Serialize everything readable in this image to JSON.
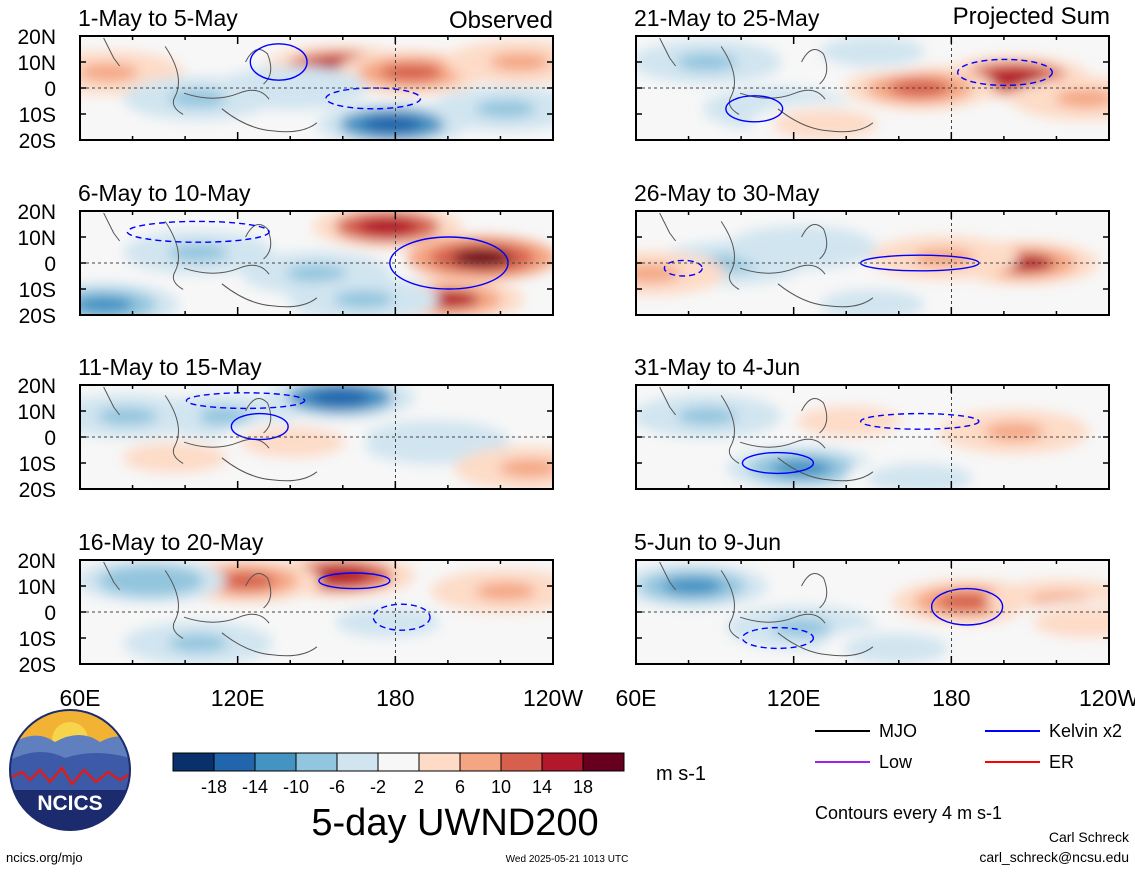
{
  "chart_data": {
    "type": "heatmap",
    "title": "5-day UWND200",
    "units": "m s-1",
    "contour_note": "Contours every 4 m s-1",
    "left_column_label": "Observed",
    "right_column_label": "Projected Sum",
    "y_ticks": [
      "20N",
      "10N",
      "0",
      "10S",
      "20S"
    ],
    "x_ticks": [
      "60E",
      "120E",
      "180",
      "120W"
    ],
    "colorbar": {
      "ticks": [
        "-18",
        "-14",
        "-10",
        "-6",
        "-2",
        "2",
        "6",
        "10",
        "14",
        "18"
      ],
      "colors": [
        "#08306b",
        "#2166ac",
        "#4393c3",
        "#92c5de",
        "#d1e5f0",
        "#f7f7f7",
        "#fddbc7",
        "#f4a582",
        "#d6604d",
        "#b2182b",
        "#67001f"
      ]
    },
    "legend": [
      {
        "label": "MJO",
        "color": "#000000"
      },
      {
        "label": "Kelvin x2",
        "color": "#0000ff"
      },
      {
        "label": "Low",
        "color": "#a020f0"
      },
      {
        "label": "ER",
        "color": "#ff0000"
      }
    ],
    "panels": [
      {
        "title": "1-May to 5-May"
      },
      {
        "title": "21-May to 25-May"
      },
      {
        "title": "6-May to 10-May"
      },
      {
        "title": "26-May to 30-May"
      },
      {
        "title": "11-May to 15-May"
      },
      {
        "title": "31-May to 4-Jun"
      },
      {
        "title": "16-May to 20-May"
      },
      {
        "title": "5-Jun to 9-Jun"
      }
    ]
  },
  "logo": {
    "text": "NCICS"
  },
  "footer": {
    "url": "ncics.org/mjo",
    "timestamp": "Wed 2025-05-21 1013 UTC",
    "author": "Carl Schreck",
    "email": "carl_schreck@ncsu.edu"
  }
}
